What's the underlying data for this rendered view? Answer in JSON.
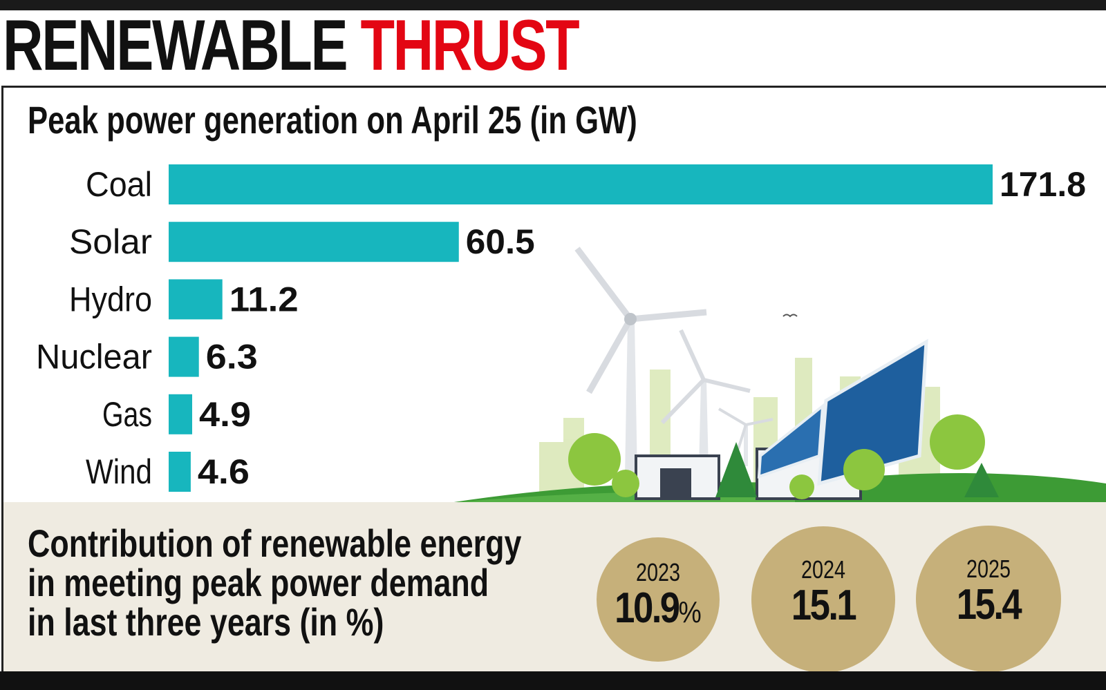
{
  "headline": {
    "black": "RENEWABLE",
    "red": "THRUST",
    "red_color": "#e30613"
  },
  "chart_data": {
    "type": "bar",
    "orientation": "horizontal",
    "title": "Peak power generation on April 25 (in GW)",
    "categories": [
      "Coal",
      "Solar",
      "Hydro",
      "Nuclear",
      "Gas",
      "Wind"
    ],
    "values": [
      171.8,
      60.5,
      11.2,
      6.3,
      4.9,
      4.6
    ],
    "value_labels": [
      "171.8",
      "60.5",
      "11.2",
      "6.3",
      "4.9",
      "4.6"
    ],
    "bar_color": "#17b6be",
    "grid": false,
    "xlim": [
      0,
      171.8
    ]
  },
  "renewable": {
    "heading_lines": [
      "Contribution of renewable energy",
      "in meeting peak power demand",
      "in last three years (in %)"
    ],
    "years": [
      {
        "year": "2023",
        "value": "10.9",
        "unit": "%"
      },
      {
        "year": "2024",
        "value": "15.1",
        "unit": ""
      },
      {
        "year": "2025",
        "value": "15.4",
        "unit": ""
      }
    ],
    "circle_color": "#c6b07a",
    "panel_color": "#efebe1"
  }
}
